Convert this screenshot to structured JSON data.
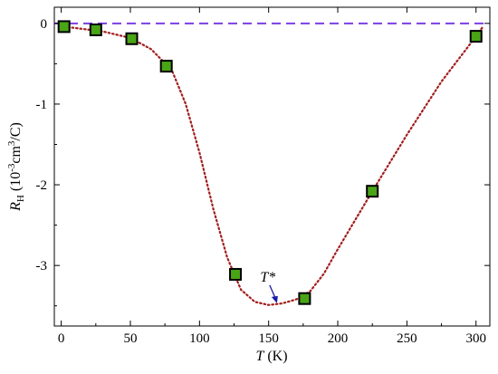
{
  "chart_data": {
    "type": "scatter",
    "title": "",
    "xlabel": {
      "symbol": "T",
      "unit": "(K)"
    },
    "ylabel": {
      "symbol": "R",
      "subscript": "H",
      "unit_open": "(10",
      "unit_exp1": "-3",
      "unit_mid": "cm",
      "unit_exp2": "3",
      "unit_close": "/C)"
    },
    "xlim": [
      -5,
      310
    ],
    "ylim": [
      -3.75,
      0.2
    ],
    "x_ticks": [
      0,
      50,
      100,
      150,
      200,
      250,
      300
    ],
    "x_tick_labels": [
      "0",
      "50",
      "100",
      "150",
      "200",
      "250",
      "300"
    ],
    "y_ticks": [
      0,
      -1,
      -2,
      -3
    ],
    "y_tick_labels": [
      "0",
      "-1",
      "-2",
      "-3"
    ],
    "grid": false,
    "series": [
      {
        "kind": "markers",
        "x": [
          2,
          25,
          51,
          76,
          126,
          176,
          225,
          300
        ],
        "y": [
          -0.04,
          -0.08,
          -0.19,
          -0.53,
          -3.11,
          -3.41,
          -2.08,
          -0.16
        ],
        "marker": "square",
        "fill": "#49a416",
        "edge": "#000000"
      },
      {
        "kind": "fit",
        "x": [
          2,
          30,
          50,
          65,
          80,
          90,
          100,
          110,
          120,
          130,
          140,
          150,
          160,
          170,
          180,
          190,
          200,
          225,
          250,
          275,
          300,
          305
        ],
        "y": [
          -0.04,
          -0.1,
          -0.18,
          -0.32,
          -0.58,
          -1.0,
          -1.6,
          -2.3,
          -2.9,
          -3.3,
          -3.45,
          -3.49,
          -3.47,
          -3.42,
          -3.32,
          -3.1,
          -2.8,
          -2.08,
          -1.38,
          -0.72,
          -0.16,
          -0.04
        ],
        "line_style": "dotted",
        "color": "#a31d1d"
      }
    ],
    "reference_line": {
      "y": 0,
      "style": "dashed",
      "color": "#7b3fe4"
    },
    "annotation": {
      "text": "T*",
      "x": 156,
      "y": -3.49
    }
  }
}
